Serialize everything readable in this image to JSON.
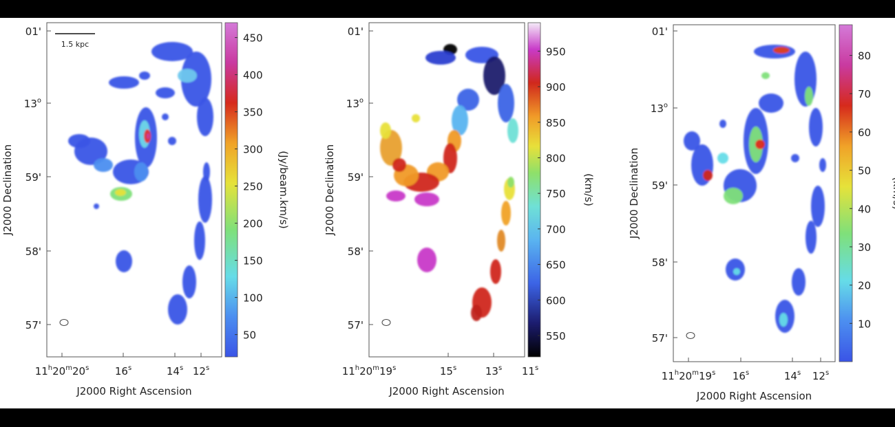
{
  "chart_data": [
    {
      "type": "heatmap",
      "title": "",
      "xlabel": "J2000 Right Ascension",
      "ylabel": "J2000 Declination",
      "scale_bar_label": "1.5 kpc",
      "x_tick_labels": [
        {
          "h": "11",
          "hs": "h",
          "m": "20",
          "ms": "m",
          "s": "20",
          "ss": "s"
        },
        {
          "s": "16",
          "ss": "s"
        },
        {
          "s": "14",
          "ss": "s"
        },
        {
          "s": "12",
          "ss": "s"
        }
      ],
      "y_tick_labels": [
        {
          "d": "01'"
        },
        {
          "d": "13",
          "sup": "o"
        },
        {
          "d": "59'"
        },
        {
          "d": "58'"
        },
        {
          "d": "57'"
        }
      ],
      "colorbar": {
        "label": "(Jy/beam.km/s)",
        "ticks": [
          "450",
          "400",
          "350",
          "300",
          "250",
          "200",
          "150",
          "100",
          "50"
        ],
        "values": [
          450,
          400,
          350,
          300,
          250,
          200,
          150,
          100,
          50
        ],
        "range": [
          20,
          470
        ],
        "colormap": "rainbow"
      }
    },
    {
      "type": "heatmap",
      "title": "",
      "xlabel": "J2000 Right Ascension",
      "ylabel": "J2000 Declination",
      "x_tick_labels": [
        {
          "h": "11",
          "hs": "h",
          "m": "20",
          "ms": "m",
          "s": "19",
          "ss": "s"
        },
        {
          "s": "15",
          "ss": "s"
        },
        {
          "s": "13",
          "ss": "s"
        },
        {
          "s": "11",
          "ss": "s"
        }
      ],
      "y_tick_labels": [
        {
          "d": "01'"
        },
        {
          "d": "13",
          "sup": "o"
        },
        {
          "d": "59'"
        },
        {
          "d": "58'"
        },
        {
          "d": "57'"
        }
      ],
      "colorbar": {
        "label": "(km/s)",
        "ticks": [
          "950",
          "900",
          "850",
          "800",
          "750",
          "700",
          "650",
          "600",
          "550"
        ],
        "values": [
          950,
          900,
          850,
          800,
          750,
          700,
          650,
          600,
          550
        ],
        "range": [
          520,
          990
        ],
        "colormap": "velocity"
      }
    },
    {
      "type": "heatmap",
      "title": "",
      "xlabel": "J2000 Right Ascension",
      "ylabel": "J2000 Declination",
      "x_tick_labels": [
        {
          "h": "11",
          "hs": "h",
          "m": "20",
          "ms": "m",
          "s": "19",
          "ss": "s"
        },
        {
          "s": "16",
          "ss": "s"
        },
        {
          "s": "14",
          "ss": "s"
        },
        {
          "s": "12",
          "ss": "s"
        }
      ],
      "y_tick_labels": [
        {
          "d": "01'"
        },
        {
          "d": "13",
          "sup": "o"
        },
        {
          "d": "59'"
        },
        {
          "d": "58'"
        },
        {
          "d": "57'"
        }
      ],
      "colorbar": {
        "label": "(km/s)",
        "ticks": [
          "80",
          "70",
          "60",
          "50",
          "40",
          "30",
          "20",
          "10"
        ],
        "values": [
          80,
          70,
          60,
          50,
          40,
          30,
          20,
          10
        ],
        "range": [
          0,
          88
        ],
        "colormap": "rainbow"
      }
    }
  ]
}
